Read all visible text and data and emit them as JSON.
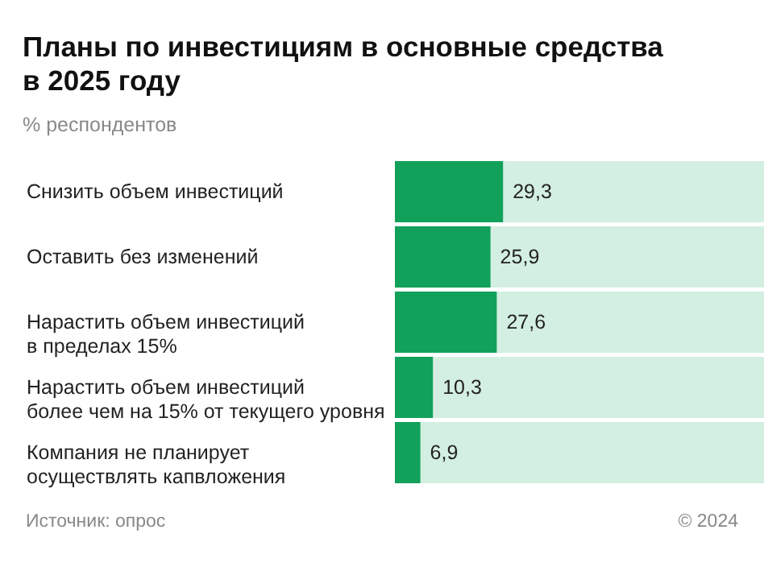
{
  "chart_data": {
    "type": "bar",
    "orientation": "horizontal",
    "title": "Планы по инвестициям в основные средства\nв 2025 году",
    "subtitle": "% респондентов",
    "categories": [
      "Снизить объем инвестиций",
      "Оставить без изменений",
      "Нарастить объем инвестиций\nв пределах 15%",
      "Нарастить объем инвестиций\nболее чем на 15% от текущего уровня",
      "Компания не планирует\nосуществлять капвложения"
    ],
    "values": [
      29.3,
      25.9,
      27.6,
      10.3,
      6.9
    ],
    "color": "#12a15a",
    "value_labels": [
      "29,3",
      "25,9",
      "27,6",
      "10,3",
      "6,9"
    ],
    "annotations": [
      "Источник: опрос",
      "© 2024"
    ]
  }
}
